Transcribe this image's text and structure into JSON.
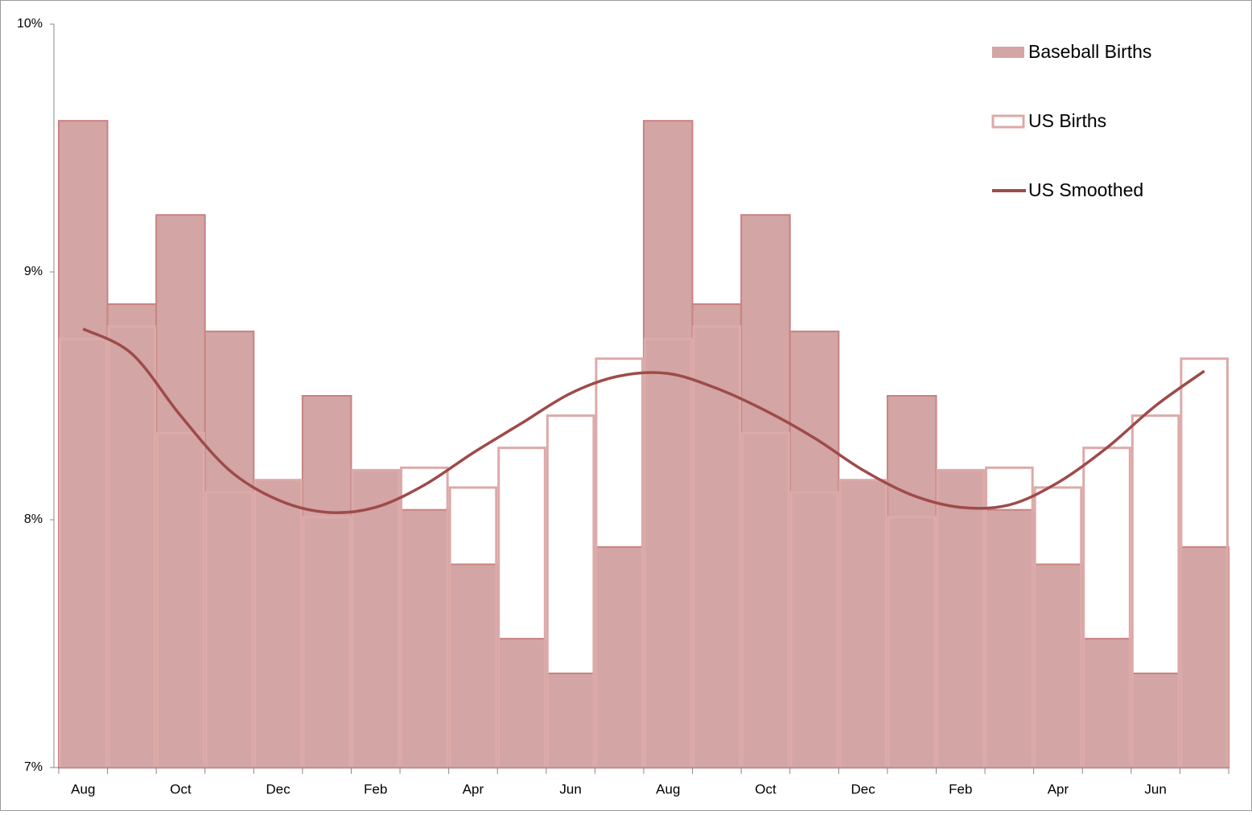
{
  "chart_data": {
    "type": "bar",
    "categories": [
      "Aug",
      null,
      "Oct",
      null,
      "Dec",
      null,
      "Feb",
      null,
      "Apr",
      null,
      "Jun",
      null,
      "Aug",
      null,
      "Oct",
      null,
      "Dec",
      null,
      "Feb",
      null,
      "Apr",
      null,
      "Jun",
      null
    ],
    "series": [
      {
        "name": "Baseball Births",
        "type": "bar",
        "color": "#d3a5a4",
        "edge": "#c98382",
        "values": [
          9.61,
          8.87,
          9.23,
          8.76,
          8.16,
          8.5,
          8.2,
          8.04,
          7.82,
          7.52,
          7.38,
          7.89,
          9.61,
          8.87,
          9.23,
          8.76,
          8.16,
          8.5,
          8.2,
          8.04,
          7.82,
          7.52,
          7.38,
          7.89
        ]
      },
      {
        "name": "US Births",
        "type": "outline",
        "color": "#dcaaa9",
        "values": [
          8.73,
          8.78,
          8.35,
          8.11,
          8.16,
          8.01,
          8.2,
          8.21,
          8.13,
          8.29,
          8.42,
          8.65,
          8.73,
          8.78,
          8.35,
          8.11,
          8.16,
          8.01,
          8.2,
          8.21,
          8.13,
          8.29,
          8.42,
          8.65
        ]
      },
      {
        "name": "US Smoothed",
        "type": "line",
        "color": "#9e4b49",
        "values": [
          8.77,
          8.67,
          8.42,
          8.2,
          8.08,
          8.03,
          8.05,
          8.14,
          8.27,
          8.39,
          8.51,
          8.58,
          8.59,
          8.53,
          8.44,
          8.33,
          8.2,
          8.1,
          8.05,
          8.06,
          8.15,
          8.29,
          8.46,
          8.6
        ]
      }
    ],
    "ylim": [
      7,
      10
    ],
    "yticks": [
      {
        "value": 7,
        "label": "7%"
      },
      {
        "value": 8,
        "label": "8%"
      },
      {
        "value": 9,
        "label": "9%"
      },
      {
        "value": 10,
        "label": "10%"
      }
    ],
    "legend": "upper right"
  }
}
